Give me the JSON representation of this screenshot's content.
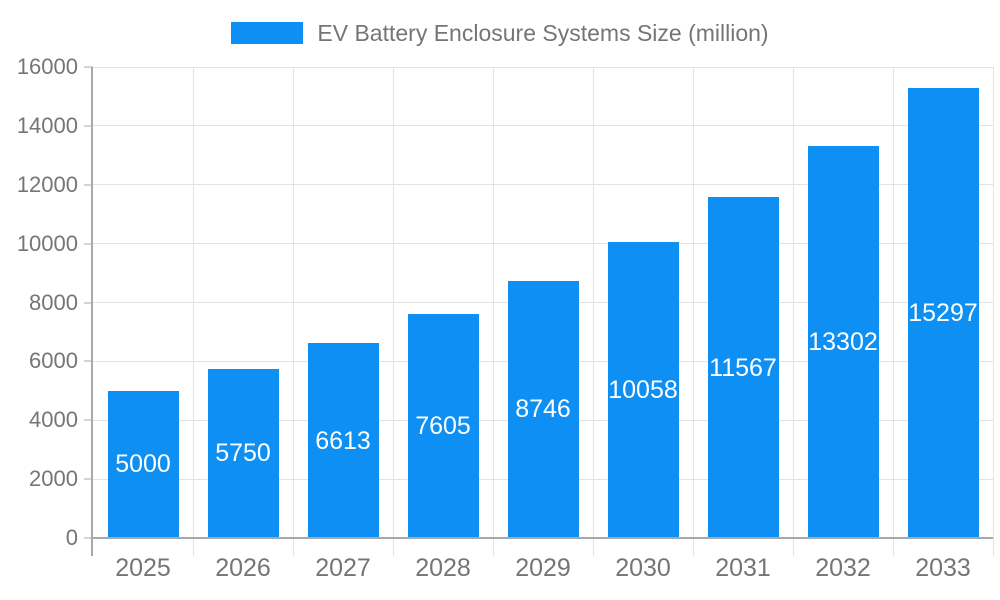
{
  "legend": {
    "title": "EV Battery Enclosure Systems Size (million)"
  },
  "chart_data": {
    "type": "bar",
    "title": "EV Battery Enclosure Systems Size (million)",
    "xlabel": "",
    "ylabel": "",
    "categories": [
      "2025",
      "2026",
      "2027",
      "2028",
      "2029",
      "2030",
      "2031",
      "2032",
      "2033"
    ],
    "values": [
      5000,
      5750,
      6613,
      7605,
      8746,
      10058,
      11567,
      13302,
      15297
    ],
    "ylim": [
      0,
      16000
    ],
    "ytick_step": 2000,
    "ytick_labels": [
      "0",
      "2000",
      "4000",
      "6000",
      "8000",
      "10000",
      "12000",
      "14000",
      "16000"
    ],
    "grid": true,
    "legend_position": "top-center",
    "value_labels": "inside-center",
    "colors": {
      "bar": "#0d8ff3",
      "bar_label": "#ffffff",
      "grid": "#e3e3e3",
      "tick": "#d4d4d4",
      "axis": "#a8a8a8",
      "text": "#757575",
      "background": "#ffffff"
    }
  }
}
